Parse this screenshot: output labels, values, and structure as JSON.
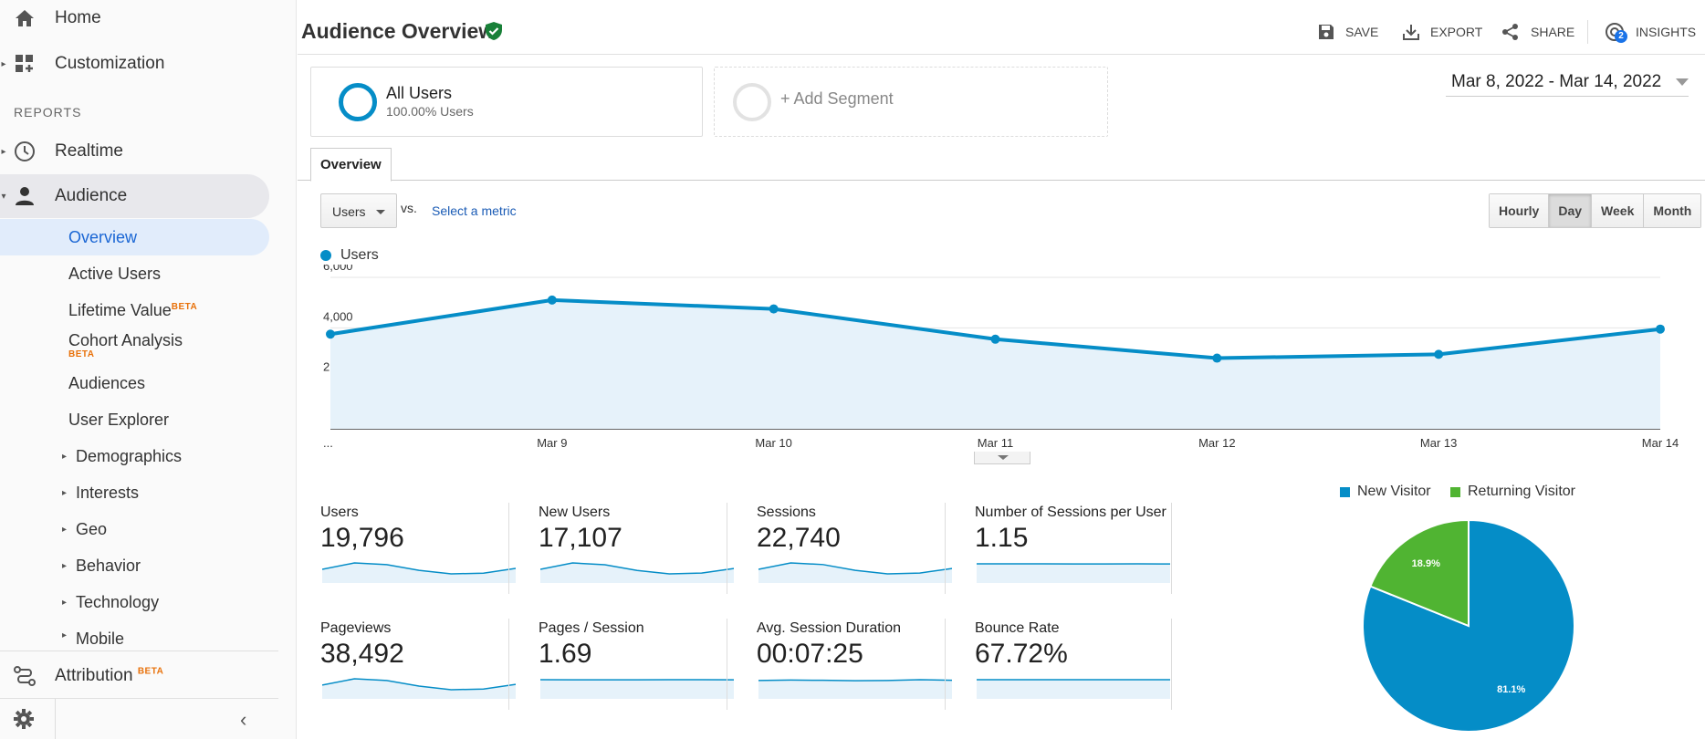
{
  "sidebar": {
    "home_label": "Home",
    "customization_label": "Customization",
    "reports_header": "REPORTS",
    "realtime_label": "Realtime",
    "audience_label": "Audience",
    "audience_items": {
      "overview": "Overview",
      "active_users": "Active Users",
      "lifetime_value": "Lifetime Value",
      "cohort_analysis": "Cohort Analysis",
      "audiences": "Audiences",
      "user_explorer": "User Explorer",
      "demographics": "Demographics",
      "interests": "Interests",
      "geo": "Geo",
      "behavior": "Behavior",
      "technology": "Technology",
      "mobile": "Mobile"
    },
    "beta_tag": "BETA",
    "attribution_label": "Attribution",
    "collapse_glyph": "‹"
  },
  "header": {
    "title": "Audience Overview",
    "save": "SAVE",
    "export": "EXPORT",
    "share": "SHARE",
    "insights": "INSIGHTS",
    "insights_badge": "2"
  },
  "segments": {
    "all_users_name": "All Users",
    "all_users_sub": "100.00% Users",
    "add_segment": "+ Add Segment"
  },
  "date_range": "Mar 8, 2022 - Mar 14, 2022",
  "tabs": {
    "overview": "Overview"
  },
  "controls": {
    "metric": "Users",
    "vs": "vs.",
    "select_metric": "Select a metric",
    "time_buttons": [
      "Hourly",
      "Day",
      "Week",
      "Month"
    ],
    "selected_time": "Day"
  },
  "colors": {
    "line": "#058dc7",
    "new_visitor": "#058dc7",
    "returning_visitor": "#50b432"
  },
  "chart_data": [
    {
      "type": "area",
      "series": [
        {
          "name": "Users",
          "values": [
            3750,
            5100,
            4750,
            3550,
            2800,
            2950,
            3950
          ]
        }
      ],
      "x_labels": [
        "...",
        "Mar 9",
        "Mar 10",
        "Mar 11",
        "Mar 12",
        "Mar 13",
        "Mar 14"
      ],
      "y_ticks": [
        "6,000",
        "4,000",
        "2,000"
      ],
      "ylim": [
        0,
        6000
      ],
      "grid": true
    },
    {
      "type": "pie",
      "legend": [
        "New Visitor",
        "Returning Visitor"
      ],
      "slices": [
        {
          "name": "New Visitor",
          "value": 81.1,
          "label": "81.1%"
        },
        {
          "name": "Returning Visitor",
          "value": 18.9,
          "label": "18.9%"
        }
      ],
      "legend_position": "top"
    }
  ],
  "kpis": [
    {
      "name": "Users",
      "value": "19,796",
      "spark": [
        3750,
        5100,
        4750,
        3550,
        2800,
        2950,
        3950
      ]
    },
    {
      "name": "New Users",
      "value": "17,107",
      "spark": [
        3250,
        4450,
        4100,
        3050,
        2400,
        2550,
        3400
      ]
    },
    {
      "name": "Sessions",
      "value": "22,740",
      "spark": [
        4300,
        5850,
        5450,
        4050,
        3200,
        3400,
        4500
      ]
    },
    {
      "name": "Number of Sessions per User",
      "value": "1.15",
      "spark": [
        1.15,
        1.15,
        1.15,
        1.14,
        1.14,
        1.15,
        1.14
      ]
    },
    {
      "name": "Pageviews",
      "value": "38,492",
      "spark": [
        7300,
        9900,
        9200,
        6900,
        5400,
        5700,
        7600
      ]
    },
    {
      "name": "Pages / Session",
      "value": "1.69",
      "spark": [
        1.7,
        1.69,
        1.69,
        1.69,
        1.7,
        1.7,
        1.69
      ]
    },
    {
      "name": "Avg. Session Duration",
      "value": "00:07:25",
      "spark": [
        445,
        455,
        450,
        440,
        445,
        465,
        450
      ]
    },
    {
      "name": "Bounce Rate",
      "value": "67.72%",
      "spark": [
        67.7,
        67.8,
        67.7,
        67.6,
        67.7,
        67.8,
        67.7
      ]
    }
  ]
}
